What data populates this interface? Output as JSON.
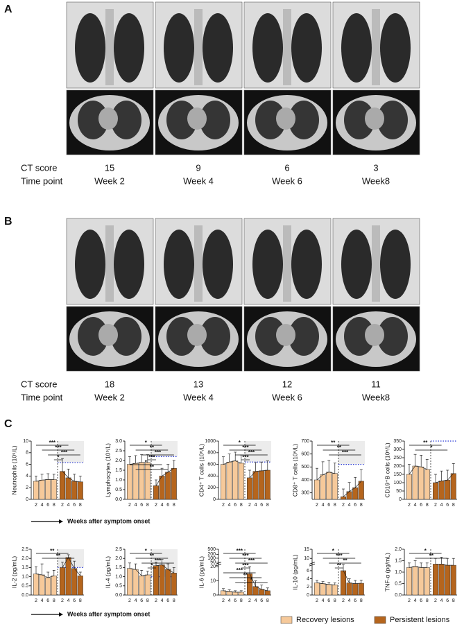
{
  "panels": [
    {
      "label": "A",
      "rows": [
        {
          "label": "CT score",
          "values": [
            15,
            9,
            6,
            3
          ]
        },
        {
          "label": "Time point",
          "values": [
            "Week 2",
            "Week 4",
            "Week 6",
            "Week8"
          ]
        }
      ]
    },
    {
      "label": "B",
      "rows": [
        {
          "label": "CT score",
          "values": [
            18,
            13,
            12,
            11
          ]
        },
        {
          "label": "Time point",
          "values": [
            "Week 2",
            "Week 4",
            "Week 6",
            "Week8"
          ]
        }
      ]
    }
  ],
  "panel_c_label": "C",
  "x_axis_note": "Weeks after symptom onset",
  "legend": [
    {
      "name": "Recovery lesions",
      "color": "#f6c99a"
    },
    {
      "name": "Persistent lesions",
      "color": "#b5651d"
    }
  ],
  "chart_data": [
    {
      "type": "bar",
      "ylabel": "Neutrophils (10⁹/L)",
      "categories": [
        "2",
        "4",
        "6",
        "8"
      ],
      "ylim": [
        0,
        10
      ],
      "yticks": [
        0,
        2,
        4,
        6,
        8,
        10
      ],
      "ref": 6.3,
      "series": [
        {
          "values": [
            3.1,
            3.3,
            3.4,
            3.4
          ],
          "errors": [
            0.9,
            1.0,
            1.0,
            0.9
          ]
        },
        {
          "values": [
            4.8,
            3.7,
            3.1,
            3.0
          ],
          "errors": [
            2.2,
            1.5,
            1.2,
            1.0
          ]
        }
      ],
      "annotations": [
        "***",
        "***",
        "***",
        "*"
      ]
    },
    {
      "type": "bar",
      "ylabel": "Lymphocytes (10⁹/L)",
      "categories": [
        "2",
        "4",
        "6",
        "8"
      ],
      "ylim": [
        0,
        3
      ],
      "yticks": [
        {
          "value": 0,
          "label": "0.0"
        },
        0.5,
        {
          "value": 1,
          "label": "1.0"
        },
        1.5,
        {
          "value": 2,
          "label": "2.0"
        },
        2.5,
        {
          "value": 3,
          "label": "3.0"
        }
      ],
      "ref": 2.2,
      "series": [
        {
          "values": [
            1.8,
            1.85,
            1.9,
            1.9
          ],
          "errors": [
            0.4,
            0.4,
            0.4,
            0.4
          ]
        },
        {
          "values": [
            0.7,
            1.2,
            1.4,
            1.6
          ],
          "errors": [
            0.3,
            0.4,
            0.4,
            0.4
          ]
        }
      ],
      "annotations": [
        "*",
        "**",
        "***",
        "***",
        "*",
        "**"
      ]
    },
    {
      "type": "bar",
      "ylabel": "CD4⁺ T cells (10⁶/L)",
      "categories": [
        "2",
        "4",
        "6",
        "8"
      ],
      "ylim": [
        0,
        1000
      ],
      "yticks": [
        0,
        200,
        400,
        600,
        800,
        1000
      ],
      "ref": 640,
      "series": [
        {
          "values": [
            600,
            640,
            660,
            620
          ],
          "errors": [
            130,
            140,
            150,
            140
          ]
        },
        {
          "values": [
            370,
            480,
            490,
            500
          ],
          "errors": [
            130,
            150,
            150,
            160
          ]
        }
      ],
      "annotations": [
        "*",
        "***",
        "***",
        "***"
      ]
    },
    {
      "type": "bar",
      "ylabel": "CD8⁺ T cells (10⁶/L)",
      "categories": [
        "2",
        "4",
        "6",
        "8"
      ],
      "ylim": [
        250,
        700
      ],
      "yticks": [
        300,
        400,
        500,
        600,
        700
      ],
      "ref": 520,
      "series": [
        {
          "values": [
            400,
            440,
            460,
            450
          ],
          "errors": [
            90,
            100,
            90,
            80
          ]
        },
        {
          "values": [
            270,
            310,
            340,
            390
          ],
          "errors": [
            60,
            70,
            80,
            90
          ]
        }
      ],
      "annotations": [
        "**",
        "**",
        "***"
      ]
    },
    {
      "type": "bar",
      "ylabel": "CD19⁺B cells (10⁶/L)",
      "categories": [
        "2",
        "4",
        "6",
        "8"
      ],
      "ylim": [
        0,
        350
      ],
      "yticks": [
        0,
        50,
        100,
        150,
        200,
        250,
        300,
        350
      ],
      "ref": 350,
      "series": [
        {
          "values": [
            150,
            200,
            195,
            180
          ],
          "errors": [
            60,
            70,
            70,
            60
          ]
        },
        {
          "values": [
            100,
            110,
            115,
            155
          ],
          "errors": [
            50,
            60,
            60,
            60
          ]
        }
      ],
      "annotations": [
        "**",
        "*"
      ]
    },
    {
      "type": "bar",
      "ylabel": "IL-2 (pg/mL)",
      "categories": [
        "2",
        "4",
        "6",
        "8"
      ],
      "ylim": [
        0,
        2.5
      ],
      "yticks": [
        {
          "value": 0,
          "label": "0.0"
        },
        0.5,
        {
          "value": 1,
          "label": "1.0"
        },
        1.5,
        {
          "value": 2,
          "label": "2.0"
        },
        2.5
      ],
      "ref": 1.5,
      "series": [
        {
          "values": [
            1.15,
            1.1,
            0.95,
            1.05
          ],
          "errors": [
            0.4,
            0.6,
            0.3,
            0.3
          ]
        },
        {
          "values": [
            1.5,
            2.05,
            1.45,
            1.05
          ],
          "errors": [
            0.3,
            0.15,
            0.4,
            0.2
          ]
        }
      ],
      "annotations": [
        "**",
        "**"
      ]
    },
    {
      "type": "bar",
      "ylabel": "IL-4 (pg/mL)",
      "categories": [
        "2",
        "4",
        "6",
        "8"
      ],
      "ylim": [
        0,
        2.5
      ],
      "yticks": [
        {
          "value": 0,
          "label": "0.0"
        },
        0.5,
        {
          "value": 1,
          "label": "1.0"
        },
        1.5,
        {
          "value": 2,
          "label": "2.0"
        },
        2.5
      ],
      "ref": 1.0,
      "series": [
        {
          "values": [
            1.45,
            1.4,
            1.05,
            1.1
          ],
          "errors": [
            0.3,
            0.3,
            0.3,
            0.2
          ]
        },
        {
          "values": [
            1.6,
            1.65,
            1.4,
            1.2
          ],
          "errors": [
            0.2,
            0.3,
            0.3,
            0.3
          ]
        }
      ],
      "annotations": [
        "*",
        "**",
        "***",
        "*"
      ]
    },
    {
      "type": "bar",
      "ylabel": "IL-6 (pg/mL)",
      "categories": [
        "2",
        "4",
        "6",
        "8"
      ],
      "ylim": [
        0,
        20
      ],
      "yticks": [
        0,
        10,
        20
      ],
      "ylim_upper": [
        50,
        500
      ],
      "yticks_upper": [
        50,
        100,
        200,
        500
      ],
      "log_upper": true,
      "series": [
        {
          "values": [
            3,
            2.5,
            2,
            2
          ],
          "errors": [
            1.5,
            1.2,
            1,
            1
          ]
        },
        {
          "values": [
            15,
            6,
            4,
            3
          ],
          "errors": [
            5,
            4,
            3,
            2
          ]
        }
      ],
      "annotations": [
        "***",
        "***",
        "***",
        "***",
        "***",
        "**",
        "*"
      ]
    },
    {
      "type": "bar",
      "ylabel": "IL-10 (pg/mL)",
      "categories": [
        "2",
        "4",
        "6",
        "8"
      ],
      "ylim": [
        0,
        7
      ],
      "yticks": [
        0,
        2,
        4,
        6
      ],
      "ylim_upper": [
        8,
        15
      ],
      "yticks_upper": [
        10,
        15
      ],
      "series": [
        {
          "values": [
            3,
            2.8,
            2.6,
            2.5
          ],
          "errors": [
            0.6,
            0.5,
            0.5,
            0.5
          ]
        },
        {
          "values": [
            6,
            3,
            2.8,
            2.9
          ],
          "errors": [
            1.5,
            1,
            0.8,
            0.8
          ]
        }
      ],
      "annotations": [
        "*",
        "***",
        "**",
        "**"
      ]
    },
    {
      "type": "bar",
      "ylabel": "TNF-α (pg/mL)",
      "categories": [
        "2",
        "4",
        "6",
        "8"
      ],
      "ylim": [
        0,
        2
      ],
      "yticks": [
        {
          "value": 0,
          "label": "0.0"
        },
        0.5,
        {
          "value": 1,
          "label": "1.0"
        },
        1.5,
        {
          "value": 2,
          "label": "2.0"
        }
      ],
      "series": [
        {
          "values": [
            1.2,
            1.25,
            1.2,
            1.2
          ],
          "errors": [
            0.2,
            0.25,
            0.2,
            0.2
          ]
        },
        {
          "values": [
            1.35,
            1.35,
            1.3,
            1.3
          ],
          "errors": [
            0.25,
            0.3,
            0.3,
            0.3
          ]
        }
      ],
      "annotations": [
        "*",
        "**"
      ]
    }
  ]
}
